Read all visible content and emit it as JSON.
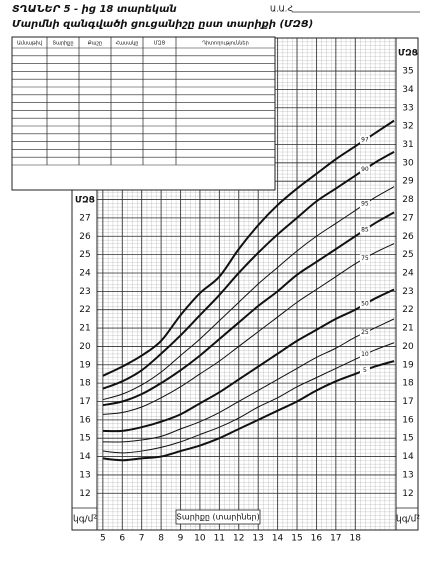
{
  "header": {
    "title": "ՏՂԱՆԵՐ  5 - ից 18 տարեկան",
    "subtitle": "Մարմնի զանգվածի ցուցանիշը ըստ տարիքի (ՄԶՑ)",
    "name_field": "Ա.Ա.Հ"
  },
  "table": {
    "columns": [
      "Ամսաթիվ",
      "Տարիքը",
      "Քաշը",
      "Հասակը",
      "ՄԶՑ",
      "Դիտողություններ"
    ]
  },
  "chart_data": {
    "type": "line",
    "x_label": "Տարիքը (տարիներ)",
    "y_label": "ՄԶՑ",
    "y_unit": "կգ/մ²",
    "x": [
      5,
      6,
      7,
      8,
      9,
      10,
      11,
      12,
      13,
      14,
      15,
      16,
      17,
      18,
      19,
      20
    ],
    "series": [
      {
        "name": "97",
        "color": "#111111",
        "linewidth": 2,
        "values": [
          18.4,
          18.9,
          19.5,
          20.3,
          21.7,
          22.9,
          23.8,
          25.3,
          26.6,
          27.7,
          28.6,
          29.4,
          30.2,
          30.9,
          31.6,
          32.3
        ]
      },
      {
        "name": "90",
        "color": "#111111",
        "linewidth": 2,
        "values": [
          17.7,
          18.1,
          18.7,
          19.6,
          20.6,
          21.7,
          22.8,
          24.0,
          25.1,
          26.1,
          27.0,
          27.9,
          28.6,
          29.3,
          30.0,
          30.6
        ]
      },
      {
        "name": "95",
        "color": "#111111",
        "linewidth": 1,
        "values": [
          17.1,
          17.4,
          17.9,
          18.6,
          19.5,
          20.4,
          21.4,
          22.4,
          23.4,
          24.3,
          25.2,
          26.0,
          26.7,
          27.4,
          28.1,
          28.7
        ]
      },
      {
        "name": "85",
        "color": "#111111",
        "linewidth": 2,
        "values": [
          16.8,
          17.0,
          17.4,
          18.0,
          18.7,
          19.5,
          20.4,
          21.3,
          22.2,
          23.0,
          23.9,
          24.6,
          25.3,
          26.0,
          26.7,
          27.3
        ]
      },
      {
        "name": "75",
        "color": "#111111",
        "linewidth": 1,
        "values": [
          16.3,
          16.4,
          16.7,
          17.2,
          17.8,
          18.5,
          19.2,
          20.0,
          20.8,
          21.6,
          22.4,
          23.1,
          23.8,
          24.5,
          25.1,
          25.6
        ]
      },
      {
        "name": "50",
        "color": "#111111",
        "linewidth": 2,
        "values": [
          15.4,
          15.4,
          15.6,
          15.9,
          16.3,
          16.9,
          17.5,
          18.2,
          18.9,
          19.6,
          20.3,
          20.9,
          21.5,
          22.0,
          22.6,
          23.1
        ]
      },
      {
        "name": "25",
        "color": "#111111",
        "linewidth": 1,
        "values": [
          14.8,
          14.8,
          14.9,
          15.1,
          15.5,
          15.9,
          16.4,
          17.0,
          17.6,
          18.2,
          18.8,
          19.4,
          19.9,
          20.5,
          21.0,
          21.5
        ]
      },
      {
        "name": "10",
        "color": "#111111",
        "linewidth": 1,
        "values": [
          14.3,
          14.2,
          14.3,
          14.5,
          14.8,
          15.2,
          15.6,
          16.1,
          16.7,
          17.2,
          17.8,
          18.3,
          18.8,
          19.3,
          19.8,
          20.2
        ]
      },
      {
        "name": "5",
        "color": "#111111",
        "linewidth": 2,
        "values": [
          13.9,
          13.8,
          13.9,
          14.0,
          14.3,
          14.6,
          15.0,
          15.5,
          16.0,
          16.5,
          17.0,
          17.6,
          18.1,
          18.5,
          18.9,
          19.2
        ]
      }
    ],
    "xlim": [
      4.7,
      20.1
    ],
    "xticks": [
      5,
      6,
      7,
      8,
      9,
      10,
      11,
      12,
      13,
      14,
      15,
      16,
      17,
      18
    ],
    "ylim": [
      10,
      36.8
    ],
    "yticks": [
      12,
      13,
      14,
      15,
      16,
      17,
      18,
      19,
      20,
      21,
      22,
      23,
      24,
      25,
      26,
      27,
      28,
      29,
      30,
      31,
      32,
      33,
      34,
      35
    ],
    "grid": true
  }
}
